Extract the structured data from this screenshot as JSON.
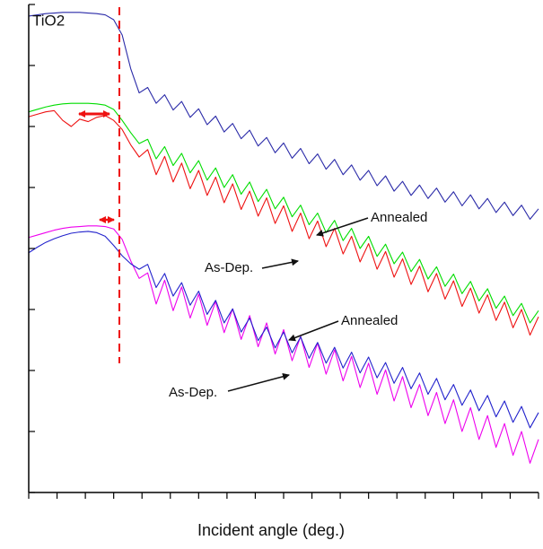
{
  "chart_data": {
    "type": "line",
    "label": "TiO2",
    "x_label": "Incident angle (deg.)",
    "x": [
      0,
      0.03,
      0.06,
      0.09,
      0.12,
      0.15,
      0.18,
      0.21,
      0.24,
      0.27,
      0.3,
      0.33,
      0.36,
      0.39,
      0.42,
      0.45,
      0.48,
      0.51,
      0.54,
      0.57,
      0.6,
      0.63,
      0.66,
      0.69,
      0.72,
      0.75,
      0.78,
      0.81,
      0.84,
      0.87,
      0.9,
      0.93,
      0.96,
      0.99,
      1.02,
      1.05,
      1.08,
      1.11,
      1.14,
      1.17,
      1.2,
      1.23,
      1.26,
      1.29,
      1.32,
      1.35,
      1.38,
      1.41,
      1.44,
      1.47,
      1.5,
      1.53,
      1.56,
      1.59,
      1.62,
      1.65,
      1.68,
      1.71,
      1.74,
      1.77,
      1.8
    ],
    "series": [
      {
        "color": "#2a2aa8",
        "values": [
          -0.19,
          -0.17,
          -0.15,
          -0.14,
          -0.13,
          -0.13,
          -0.13,
          -0.14,
          -0.15,
          -0.17,
          -0.25,
          -0.5,
          -1.05,
          -1.45,
          -1.36,
          -1.62,
          -1.48,
          -1.73,
          -1.59,
          -1.85,
          -1.71,
          -1.97,
          -1.83,
          -2.09,
          -1.95,
          -2.2,
          -2.06,
          -2.32,
          -2.18,
          -2.43,
          -2.27,
          -2.52,
          -2.36,
          -2.61,
          -2.45,
          -2.7,
          -2.54,
          -2.79,
          -2.63,
          -2.88,
          -2.72,
          -2.97,
          -2.81,
          -3.06,
          -2.9,
          -3.13,
          -2.96,
          -3.18,
          -3.01,
          -3.24,
          -3.07,
          -3.3,
          -3.12,
          -3.35,
          -3.18,
          -3.41,
          -3.24,
          -3.46,
          -3.29,
          -3.52,
          -3.35
        ]
      },
      {
        "color": "#00dd00",
        "values": [
          -1.76,
          -1.72,
          -1.68,
          -1.65,
          -1.63,
          -1.62,
          -1.62,
          -1.62,
          -1.63,
          -1.65,
          -1.72,
          -1.9,
          -2.1,
          -2.28,
          -2.21,
          -2.53,
          -2.33,
          -2.64,
          -2.44,
          -2.76,
          -2.56,
          -2.88,
          -2.68,
          -3.0,
          -2.79,
          -3.11,
          -2.91,
          -3.23,
          -3.03,
          -3.35,
          -3.16,
          -3.48,
          -3.29,
          -3.61,
          -3.42,
          -3.74,
          -3.54,
          -3.87,
          -3.67,
          -4.0,
          -3.8,
          -4.13,
          -3.93,
          -4.25,
          -4.06,
          -4.38,
          -4.18,
          -4.5,
          -4.3,
          -4.62,
          -4.42,
          -4.74,
          -4.54,
          -4.86,
          -4.66,
          -4.98,
          -4.78,
          -5.1,
          -4.9,
          -5.22,
          -5.02
        ]
      },
      {
        "color": "#ee1111",
        "values": [
          -1.84,
          -1.8,
          -1.76,
          -1.74,
          -1.9,
          -2.0,
          -1.88,
          -1.92,
          -1.85,
          -1.82,
          -1.9,
          -2.05,
          -2.3,
          -2.5,
          -2.38,
          -2.79,
          -2.49,
          -2.91,
          -2.6,
          -3.02,
          -2.72,
          -3.13,
          -2.83,
          -3.25,
          -2.94,
          -3.36,
          -3.06,
          -3.47,
          -3.17,
          -3.59,
          -3.3,
          -3.72,
          -3.42,
          -3.84,
          -3.55,
          -3.97,
          -3.67,
          -4.09,
          -3.8,
          -4.22,
          -3.92,
          -4.34,
          -4.05,
          -4.47,
          -4.17,
          -4.59,
          -4.29,
          -4.71,
          -4.41,
          -4.83,
          -4.53,
          -4.95,
          -4.65,
          -5.06,
          -4.76,
          -5.18,
          -4.88,
          -5.3,
          -5.0,
          -5.42,
          -5.12
        ]
      },
      {
        "color": "#ee00ee",
        "values": [
          -3.82,
          -3.78,
          -3.74,
          -3.7,
          -3.67,
          -3.65,
          -3.64,
          -3.63,
          -3.63,
          -3.64,
          -3.68,
          -3.85,
          -4.2,
          -4.49,
          -4.4,
          -4.91,
          -4.52,
          -5.02,
          -4.63,
          -5.14,
          -4.75,
          -5.26,
          -4.87,
          -5.38,
          -4.99,
          -5.49,
          -5.1,
          -5.61,
          -5.22,
          -5.73,
          -5.33,
          -5.84,
          -5.44,
          -5.95,
          -5.55,
          -6.06,
          -5.66,
          -6.17,
          -5.77,
          -6.28,
          -5.88,
          -6.39,
          -5.99,
          -6.5,
          -6.1,
          -6.61,
          -6.23,
          -6.74,
          -6.36,
          -6.87,
          -6.48,
          -7.0,
          -6.61,
          -7.13,
          -6.74,
          -7.26,
          -6.87,
          -7.39,
          -7.0,
          -7.52,
          -7.13
        ]
      },
      {
        "color": "#2222cc",
        "values": [
          -4.07,
          -3.98,
          -3.9,
          -3.84,
          -3.79,
          -3.75,
          -3.73,
          -3.72,
          -3.74,
          -3.8,
          -3.95,
          -4.12,
          -4.25,
          -4.34,
          -4.26,
          -4.64,
          -4.41,
          -4.78,
          -4.56,
          -4.93,
          -4.7,
          -5.08,
          -4.85,
          -5.22,
          -4.99,
          -5.37,
          -5.14,
          -5.51,
          -5.29,
          -5.63,
          -5.37,
          -5.71,
          -5.45,
          -5.8,
          -5.54,
          -5.88,
          -5.62,
          -5.96,
          -5.7,
          -6.04,
          -5.78,
          -6.12,
          -5.87,
          -6.21,
          -5.95,
          -6.3,
          -6.04,
          -6.39,
          -6.13,
          -6.48,
          -6.23,
          -6.57,
          -6.32,
          -6.66,
          -6.41,
          -6.76,
          -6.5,
          -6.85,
          -6.59,
          -6.94,
          -6.69
        ]
      }
    ],
    "reference_line": {
      "x": 0.32,
      "color": "#ee1111"
    },
    "annotations": [
      "Annealed",
      "As-Dep.",
      "Annealed",
      "As-Dep."
    ],
    "xlim": [
      0,
      1.8
    ],
    "ylim": [
      -8,
      0
    ],
    "xticks": [
      0,
      0.1,
      0.2,
      0.3,
      0.4,
      0.5,
      0.6,
      0.7,
      0.8,
      0.9,
      1,
      1.1,
      1.2,
      1.3,
      1.4,
      1.5,
      1.6,
      1.7,
      1.8
    ],
    "yticks": [
      -8,
      -7,
      -6,
      -5,
      -4,
      -3,
      -2,
      -1,
      0
    ]
  }
}
